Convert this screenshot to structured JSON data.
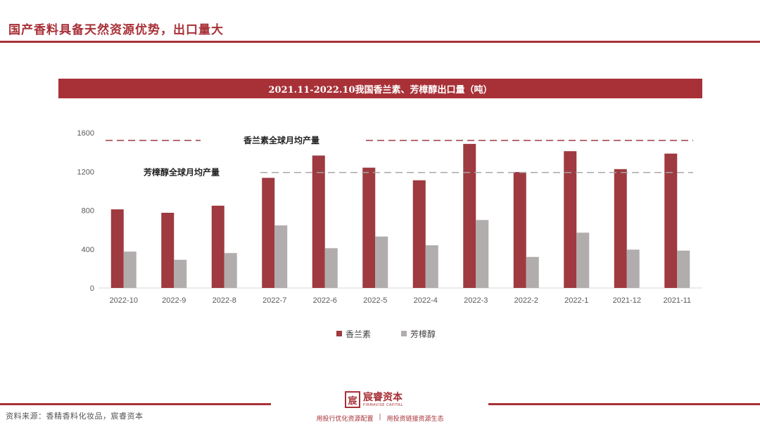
{
  "header": {
    "title": "国产香料具备天然资源优势，出口量大"
  },
  "chart_banner": {
    "title": "2021.11-2022.10我国香兰素、芳樟醇出口量（吨）"
  },
  "chart_data": {
    "type": "bar",
    "title": "2021.11-2022.10我国香兰素、芳樟醇出口量（吨）",
    "categories": [
      "2022-10",
      "2022-9",
      "2022-8",
      "2022-7",
      "2022-6",
      "2022-5",
      "2022-4",
      "2022-3",
      "2022-2",
      "2022-1",
      "2021-12",
      "2021-11"
    ],
    "series": [
      {
        "name": "香兰素",
        "color": "#9e3a40",
        "values": [
          810,
          775,
          848,
          1135,
          1365,
          1240,
          1110,
          1485,
          1195,
          1410,
          1225,
          1385
        ]
      },
      {
        "name": "芳樟醇",
        "color": "#b2adad",
        "values": [
          375,
          290,
          360,
          645,
          410,
          530,
          440,
          700,
          320,
          570,
          395,
          385
        ]
      }
    ],
    "ylim": [
      0,
      1600
    ],
    "yticks": [
      0,
      400,
      800,
      1200,
      1600
    ],
    "reference_lines": [
      {
        "label": "香兰素全球月均产量",
        "value": 1520,
        "color": "#9e3a40"
      },
      {
        "label": "芳樟醇全球月均产量",
        "value": 1190,
        "color": "#b2adad"
      }
    ],
    "grid": false,
    "legend_position": "bottom"
  },
  "footer": {
    "source": "资料来源：香精香料化妆品，宸睿资本",
    "logo_name": "宸睿资本",
    "logo_sub": "FIRMAVISE CAPITAL",
    "slogan_left": "用投行优化资源配置",
    "slogan_divider": "|",
    "slogan_right": "用投资链接资源生态"
  }
}
